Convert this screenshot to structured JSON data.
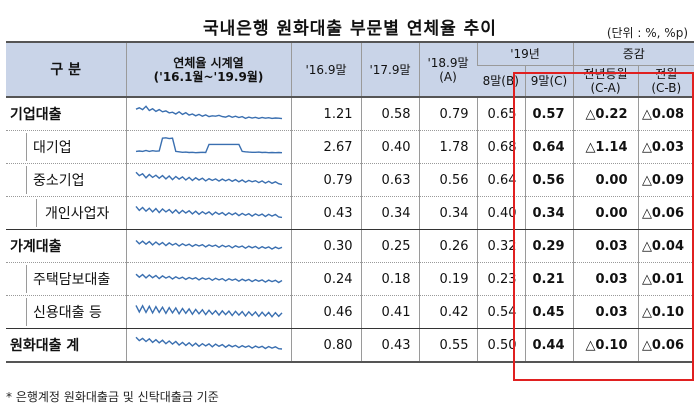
{
  "title": "국내은행 원화대출 부문별 연체율 추이",
  "unit": "(단위 : %, %p)",
  "header": {
    "category": "구 분",
    "series_title": "연체율 시계열",
    "series_range": "('16.1월~'19.9월)",
    "col_1609": "'16.9말",
    "col_1709": "'17.9말",
    "col_1809": "'18.9말(A)",
    "group_19": "'19년",
    "col_aug": "8말(B)",
    "col_sep": "9말(C)",
    "group_change": "증감",
    "col_yoy": "전년동월",
    "col_yoy_sub": "(C-A)",
    "col_mom": "전월",
    "col_mom_sub": "(C-B)"
  },
  "rows": [
    {
      "label": "기업대출",
      "v1609": "1.21",
      "v1709": "0.58",
      "v1809": "0.79",
      "aug": "0.65",
      "sep": "0.57",
      "yoy": "△0.22",
      "mom": "△0.08"
    },
    {
      "label": "대기업",
      "v1609": "2.67",
      "v1709": "0.40",
      "v1809": "1.78",
      "aug": "0.68",
      "sep": "0.64",
      "yoy": "△1.14",
      "mom": "△0.03"
    },
    {
      "label": "중소기업",
      "v1609": "0.79",
      "v1709": "0.63",
      "v1809": "0.56",
      "aug": "0.64",
      "sep": "0.56",
      "yoy": "0.00",
      "mom": "△0.09"
    },
    {
      "label": "개인사업자",
      "v1609": "0.43",
      "v1709": "0.34",
      "v1809": "0.34",
      "aug": "0.40",
      "sep": "0.34",
      "yoy": "0.00",
      "mom": "△0.06"
    },
    {
      "label": "가계대출",
      "v1609": "0.30",
      "v1709": "0.25",
      "v1809": "0.26",
      "aug": "0.32",
      "sep": "0.29",
      "yoy": "0.03",
      "mom": "△0.04"
    },
    {
      "label": "주택담보대출",
      "v1609": "0.24",
      "v1709": "0.18",
      "v1809": "0.19",
      "aug": "0.23",
      "sep": "0.21",
      "yoy": "0.03",
      "mom": "△0.01"
    },
    {
      "label": "신용대출 등",
      "v1609": "0.46",
      "v1709": "0.41",
      "v1809": "0.42",
      "aug": "0.54",
      "sep": "0.45",
      "yoy": "0.03",
      "mom": "△0.10"
    },
    {
      "label": "원화대출 계",
      "v1609": "0.80",
      "v1709": "0.43",
      "v1809": "0.55",
      "aug": "0.50",
      "sep": "0.44",
      "yoy": "△0.10",
      "mom": "△0.06"
    }
  ],
  "sparklines": [
    [
      0.72,
      0.78,
      0.7,
      0.85,
      0.66,
      0.74,
      0.62,
      0.7,
      0.6,
      0.64,
      0.55,
      0.58,
      0.5,
      0.6,
      0.48,
      0.56,
      0.45,
      0.5,
      0.42,
      0.48,
      0.4,
      0.46,
      0.38,
      0.42,
      0.4,
      0.44,
      0.38,
      0.36,
      0.42,
      0.35,
      0.4,
      0.34,
      0.38,
      0.3,
      0.36,
      0.32,
      0.35,
      0.3,
      0.34,
      0.31,
      0.33,
      0.3,
      0.32,
      0.31,
      0.29
    ],
    [
      0.3,
      0.32,
      0.3,
      0.34,
      0.3,
      0.33,
      0.31,
      0.32,
      0.9,
      0.92,
      0.88,
      0.9,
      0.3,
      0.28,
      0.26,
      0.27,
      0.25,
      0.26,
      0.24,
      0.25,
      0.26,
      0.25,
      0.62,
      0.62,
      0.62,
      0.62,
      0.62,
      0.62,
      0.62,
      0.62,
      0.62,
      0.62,
      0.3,
      0.28,
      0.27,
      0.26,
      0.26,
      0.27,
      0.25,
      0.26,
      0.24,
      0.25,
      0.24,
      0.25,
      0.24
    ],
    [
      0.85,
      0.7,
      0.78,
      0.6,
      0.75,
      0.62,
      0.72,
      0.58,
      0.7,
      0.55,
      0.68,
      0.52,
      0.66,
      0.54,
      0.64,
      0.5,
      0.62,
      0.48,
      0.6,
      0.5,
      0.58,
      0.46,
      0.56,
      0.48,
      0.55,
      0.45,
      0.54,
      0.46,
      0.53,
      0.44,
      0.52,
      0.42,
      0.5,
      0.4,
      0.48,
      0.42,
      0.47,
      0.38,
      0.46,
      0.36,
      0.44,
      0.35,
      0.42,
      0.33,
      0.3
    ],
    [
      0.8,
      0.62,
      0.75,
      0.58,
      0.72,
      0.55,
      0.7,
      0.52,
      0.68,
      0.55,
      0.66,
      0.5,
      0.64,
      0.48,
      0.62,
      0.5,
      0.6,
      0.46,
      0.58,
      0.44,
      0.56,
      0.46,
      0.55,
      0.42,
      0.54,
      0.44,
      0.52,
      0.4,
      0.51,
      0.42,
      0.5,
      0.38,
      0.48,
      0.4,
      0.47,
      0.36,
      0.46,
      0.38,
      0.45,
      0.34,
      0.44,
      0.36,
      0.43,
      0.32,
      0.3
    ],
    [
      0.75,
      0.6,
      0.72,
      0.58,
      0.7,
      0.55,
      0.68,
      0.56,
      0.66,
      0.52,
      0.64,
      0.54,
      0.62,
      0.5,
      0.6,
      0.52,
      0.58,
      0.48,
      0.57,
      0.5,
      0.56,
      0.46,
      0.55,
      0.48,
      0.54,
      0.44,
      0.53,
      0.46,
      0.52,
      0.42,
      0.51,
      0.44,
      0.5,
      0.4,
      0.49,
      0.42,
      0.48,
      0.38,
      0.47,
      0.4,
      0.46,
      0.36,
      0.45,
      0.38,
      0.44
    ],
    [
      0.72,
      0.58,
      0.7,
      0.55,
      0.68,
      0.56,
      0.66,
      0.52,
      0.64,
      0.54,
      0.62,
      0.5,
      0.6,
      0.52,
      0.58,
      0.48,
      0.57,
      0.5,
      0.56,
      0.46,
      0.55,
      0.48,
      0.54,
      0.44,
      0.53,
      0.46,
      0.52,
      0.42,
      0.51,
      0.44,
      0.5,
      0.4,
      0.49,
      0.42,
      0.48,
      0.38,
      0.47,
      0.4,
      0.46,
      0.36,
      0.45,
      0.38,
      0.44,
      0.34,
      0.43
    ],
    [
      0.8,
      0.5,
      0.78,
      0.48,
      0.76,
      0.46,
      0.74,
      0.48,
      0.72,
      0.44,
      0.7,
      0.46,
      0.68,
      0.42,
      0.66,
      0.44,
      0.64,
      0.4,
      0.62,
      0.42,
      0.6,
      0.38,
      0.58,
      0.4,
      0.56,
      0.36,
      0.55,
      0.38,
      0.54,
      0.34,
      0.53,
      0.36,
      0.52,
      0.32,
      0.51,
      0.34,
      0.5,
      0.3,
      0.49,
      0.32,
      0.48,
      0.28,
      0.47,
      0.3,
      0.46
    ],
    [
      0.85,
      0.7,
      0.8,
      0.66,
      0.78,
      0.62,
      0.74,
      0.6,
      0.72,
      0.56,
      0.68,
      0.54,
      0.66,
      0.5,
      0.62,
      0.48,
      0.6,
      0.46,
      0.58,
      0.44,
      0.56,
      0.46,
      0.55,
      0.42,
      0.54,
      0.44,
      0.52,
      0.4,
      0.5,
      0.42,
      0.48,
      0.38,
      0.47,
      0.4,
      0.46,
      0.36,
      0.45,
      0.38,
      0.44,
      0.34,
      0.43,
      0.36,
      0.42,
      0.33,
      0.32
    ]
  ],
  "footnote": "* 은행계정 원화대출금 및 신탁대출금 기준"
}
